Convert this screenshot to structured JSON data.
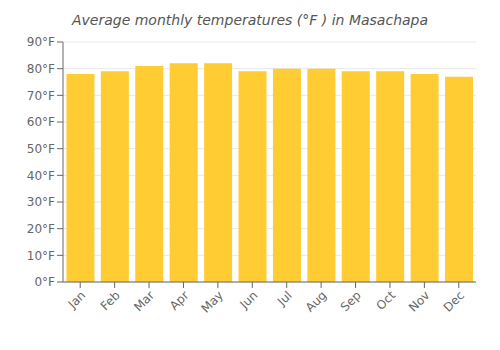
{
  "chart_data": {
    "type": "bar",
    "title": "Average monthly temperatures (°F ) in Masachapa",
    "categories": [
      "Jan",
      "Feb",
      "Mar",
      "Apr",
      "May",
      "Jun",
      "Jul",
      "Aug",
      "Sep",
      "Oct",
      "Nov",
      "Dec"
    ],
    "values": [
      78,
      79,
      81,
      82,
      82,
      79,
      80,
      80,
      79,
      79,
      78,
      77
    ],
    "color": "#FFCC33",
    "ylim": [
      0,
      90
    ],
    "yticks": [
      {
        "value": 0,
        "label": "0°F"
      },
      {
        "value": 10,
        "label": "10°F"
      },
      {
        "value": 20,
        "label": "20°F"
      },
      {
        "value": 30,
        "label": "30°F"
      },
      {
        "value": 40,
        "label": "40°F"
      },
      {
        "value": 50,
        "label": "50°F"
      },
      {
        "value": 60,
        "label": "60°F"
      },
      {
        "value": 70,
        "label": "70°F"
      },
      {
        "value": 80,
        "label": "80°F"
      },
      {
        "value": 90,
        "label": "90°F"
      }
    ],
    "grid": true
  }
}
